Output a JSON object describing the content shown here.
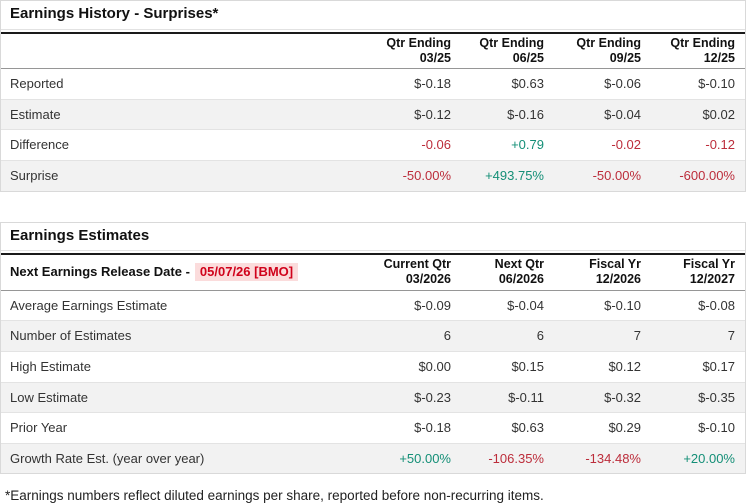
{
  "colors": {
    "negative": "#bc2d3b",
    "positive": "#148f77",
    "badge_bg": "#fbdcdc",
    "badge_text": "#d0021b"
  },
  "history": {
    "title": "Earnings History - Surprises*",
    "columns": [
      {
        "line1": "Qtr Ending",
        "line2": "03/25"
      },
      {
        "line1": "Qtr Ending",
        "line2": "06/25"
      },
      {
        "line1": "Qtr Ending",
        "line2": "09/25"
      },
      {
        "line1": "Qtr Ending",
        "line2": "12/25"
      }
    ],
    "rows": [
      {
        "label": "Reported",
        "cells": [
          {
            "text": "$-0.18"
          },
          {
            "text": "$0.63"
          },
          {
            "text": "$-0.06"
          },
          {
            "text": "$-0.10"
          }
        ]
      },
      {
        "label": "Estimate",
        "cells": [
          {
            "text": "$-0.12"
          },
          {
            "text": "$-0.16"
          },
          {
            "text": "$-0.04"
          },
          {
            "text": "$0.02"
          }
        ]
      },
      {
        "label": "Difference",
        "cells": [
          {
            "text": "-0.06",
            "tone": "neg"
          },
          {
            "text": "+0.79",
            "tone": "pos"
          },
          {
            "text": "-0.02",
            "tone": "neg"
          },
          {
            "text": "-0.12",
            "tone": "neg"
          }
        ]
      },
      {
        "label": "Surprise",
        "cells": [
          {
            "text": "-50.00%",
            "tone": "neg"
          },
          {
            "text": "+493.75%",
            "tone": "pos"
          },
          {
            "text": "-50.00%",
            "tone": "neg"
          },
          {
            "text": "-600.00%",
            "tone": "neg"
          }
        ]
      }
    ]
  },
  "estimates": {
    "title": "Earnings Estimates",
    "release_label": "Next Earnings Release Date -",
    "release_date": "05/07/26 [BMO]",
    "columns": [
      {
        "line1": "Current Qtr",
        "line2": "03/2026"
      },
      {
        "line1": "Next Qtr",
        "line2": "06/2026"
      },
      {
        "line1": "Fiscal Yr",
        "line2": "12/2026"
      },
      {
        "line1": "Fiscal Yr",
        "line2": "12/2027"
      }
    ],
    "rows": [
      {
        "label": "Average Earnings Estimate",
        "cells": [
          {
            "text": "$-0.09"
          },
          {
            "text": "$-0.04"
          },
          {
            "text": "$-0.10"
          },
          {
            "text": "$-0.08"
          }
        ]
      },
      {
        "label": "Number of Estimates",
        "cells": [
          {
            "text": "6"
          },
          {
            "text": "6"
          },
          {
            "text": "7"
          },
          {
            "text": "7"
          }
        ]
      },
      {
        "label": "High Estimate",
        "cells": [
          {
            "text": "$0.00"
          },
          {
            "text": "$0.15"
          },
          {
            "text": "$0.12"
          },
          {
            "text": "$0.17"
          }
        ]
      },
      {
        "label": "Low Estimate",
        "cells": [
          {
            "text": "$-0.23"
          },
          {
            "text": "$-0.11"
          },
          {
            "text": "$-0.32"
          },
          {
            "text": "$-0.35"
          }
        ]
      },
      {
        "label": "Prior Year",
        "cells": [
          {
            "text": "$-0.18"
          },
          {
            "text": "$0.63"
          },
          {
            "text": "$0.29"
          },
          {
            "text": "$-0.10"
          }
        ]
      },
      {
        "label": "Growth Rate Est. (year over year)",
        "cells": [
          {
            "text": "+50.00%",
            "tone": "pos"
          },
          {
            "text": "-106.35%",
            "tone": "neg"
          },
          {
            "text": "-134.48%",
            "tone": "neg"
          },
          {
            "text": "+20.00%",
            "tone": "pos"
          }
        ]
      }
    ]
  },
  "footnote": "*Earnings numbers reflect diluted earnings per share, reported before non-recurring items."
}
